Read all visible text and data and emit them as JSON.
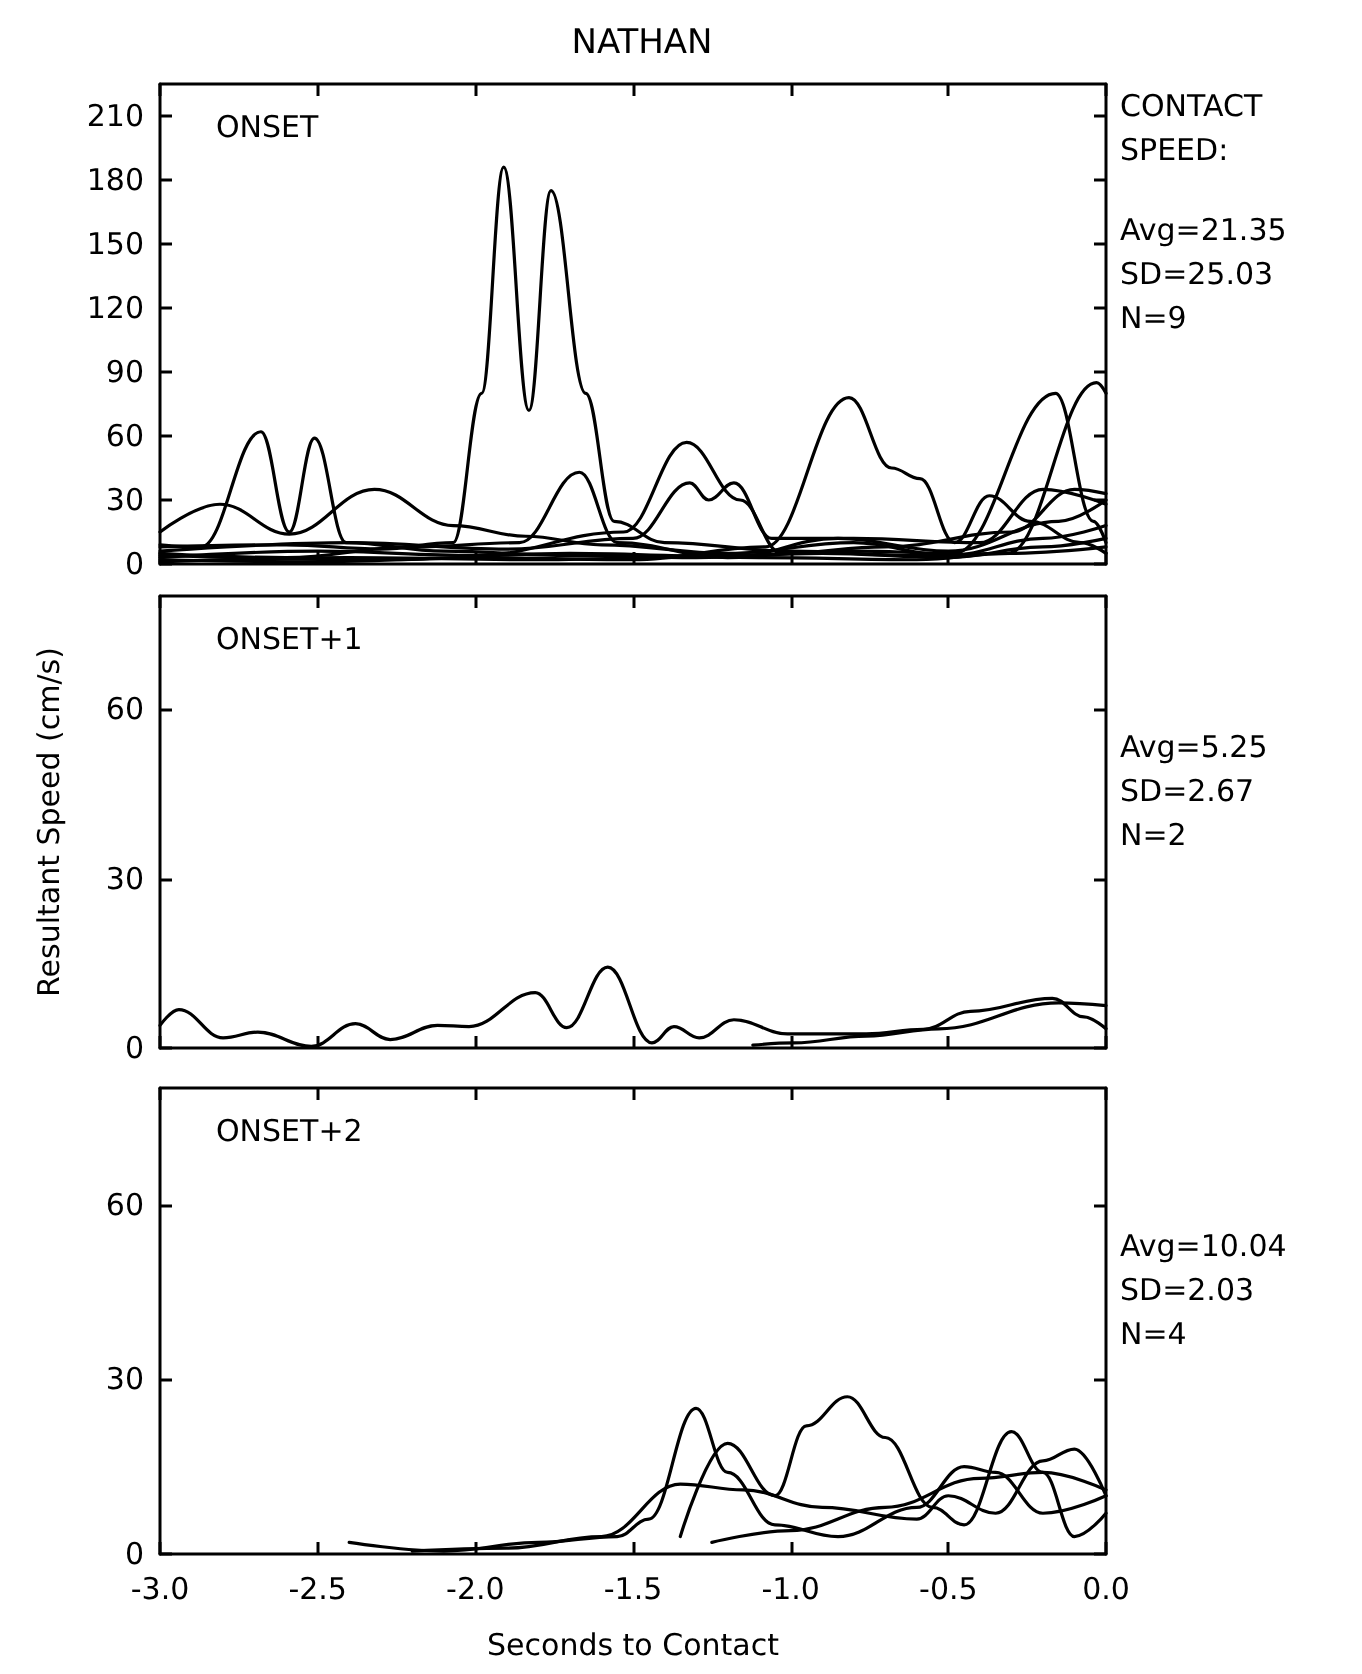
{
  "chart_data": [
    {
      "type": "line",
      "title": "NATHAN",
      "subtitle": "ONSET",
      "annotations": [
        "CONTACT SPEED:",
        "Avg=21.35",
        "SD=25.03",
        "N=9"
      ],
      "xlim": [
        -3,
        0
      ],
      "ylim": [
        0,
        225
      ],
      "yticks": [
        0,
        30,
        60,
        90,
        120,
        150,
        180,
        210
      ],
      "xticks": [
        -3,
        -2.5,
        -2,
        -1.5,
        -1,
        -0.5,
        0
      ],
      "tick_labels": "y",
      "marker": "none",
      "line_style": "solid",
      "series": [
        {
          "color": "#000000",
          "x": [
            -3,
            -2.6,
            -2.3,
            -2.07,
            -1.98,
            -1.91,
            -1.83,
            -1.76,
            -1.65,
            -1.56,
            -1.4,
            -1.0,
            -0.6,
            -0.3,
            0
          ],
          "values": [
            8,
            9,
            7,
            10,
            80,
            186,
            72,
            175,
            80,
            20,
            10,
            6,
            4,
            5,
            8
          ]
        },
        {
          "color": "#000000",
          "x": [
            -3,
            -2.87,
            -2.68,
            -2.59,
            -2.51,
            -2.41,
            -2.1,
            -1.7,
            -1.3,
            -0.9,
            -0.5,
            -0.2,
            0
          ],
          "values": [
            9,
            8,
            62,
            15,
            59,
            10,
            6,
            4,
            3,
            5,
            3,
            8,
            12
          ]
        },
        {
          "color": "#000000",
          "x": [
            -3,
            -2.81,
            -2.59,
            -2.32,
            -2.07,
            -1.84,
            -1.6,
            -1.2,
            -0.8,
            -0.5,
            -0.2,
            0
          ],
          "values": [
            15,
            28,
            14,
            35,
            18,
            13,
            9,
            5,
            10,
            4,
            12,
            18
          ]
        },
        {
          "color": "#000000",
          "x": [
            -3,
            -2.6,
            -2.2,
            -1.86,
            -1.67,
            -1.55,
            -1.2,
            -0.85,
            -0.5,
            -0.15,
            0
          ],
          "values": [
            5,
            3,
            8,
            10,
            43,
            10,
            3,
            12,
            6,
            20,
            30
          ]
        },
        {
          "color": "#000000",
          "x": [
            -3,
            -2.5,
            -2.0,
            -1.53,
            -1.33,
            -1.16,
            -1.03,
            -0.7,
            -0.3,
            -0.1,
            0
          ],
          "values": [
            3,
            6,
            4,
            15,
            57,
            30,
            5,
            8,
            15,
            35,
            33
          ]
        },
        {
          "color": "#000000",
          "x": [
            -3,
            -2.4,
            -1.9,
            -1.5,
            -1.32,
            -1.26,
            -1.18,
            -1.06,
            -0.8,
            -0.4,
            -0.2,
            0
          ],
          "values": [
            6,
            10,
            7,
            12,
            38,
            30,
            38,
            12,
            12,
            10,
            35,
            28
          ]
        },
        {
          "color": "#000000",
          "x": [
            -3,
            -2.5,
            -2.0,
            -1.5,
            -1.08,
            -0.815,
            -0.68,
            -0.59,
            -0.48,
            -0.37,
            -0.24,
            -0.08,
            0
          ],
          "values": [
            2,
            1,
            3,
            2,
            8,
            78,
            45,
            40,
            10,
            32,
            20,
            10,
            5
          ]
        },
        {
          "color": "#000000",
          "x": [
            -3,
            -2.4,
            -1.8,
            -1.2,
            -0.8,
            -0.48,
            -0.16,
            -0.04,
            0
          ],
          "values": [
            1,
            3,
            2,
            4,
            6,
            5,
            80,
            20,
            10
          ]
        },
        {
          "color": "#000000",
          "x": [
            -3,
            -2.3,
            -1.7,
            -1.1,
            -0.6,
            -0.31,
            -0.03,
            0
          ],
          "values": [
            4,
            2,
            5,
            3,
            2,
            5,
            85,
            80
          ]
        }
      ]
    },
    {
      "type": "line",
      "subtitle": "ONSET+1",
      "ylabel": "Resultant Speed (cm/s)",
      "annotations": [
        "Avg=5.25",
        "SD=2.67",
        "N=2"
      ],
      "xlim": [
        -3,
        0
      ],
      "ylim": [
        0,
        80
      ],
      "yticks": [
        0,
        30,
        60
      ],
      "xticks": [
        -3,
        -2.5,
        -2,
        -1.5,
        -1,
        -0.5,
        0
      ],
      "tick_labels": "y",
      "marker": "none",
      "line_style": "solid",
      "series": [
        {
          "color": "#000000",
          "x": [
            -3,
            -2.94,
            -2.8,
            -2.69,
            -2.52,
            -2.38,
            -2.27,
            -2.12,
            -2.02,
            -1.81,
            -1.71,
            -1.58,
            -1.44,
            -1.37,
            -1.29,
            -1.18,
            -1.01,
            -0.76,
            -0.58,
            -0.43,
            -0.17,
            -0.07,
            0
          ],
          "values": [
            4,
            6.8,
            1.8,
            2.8,
            0.3,
            4.3,
            1.5,
            4,
            3.8,
            9.8,
            3.6,
            14.3,
            0.9,
            3.8,
            1.8,
            5,
            2.5,
            2.5,
            3.3,
            6.5,
            8.8,
            5.5,
            3.4
          ]
        },
        {
          "color": "#000000",
          "x": [
            -1.12,
            -0.99,
            -0.76,
            -0.53,
            -0.15,
            0
          ],
          "values": [
            0.5,
            0.9,
            2.1,
            3.4,
            8,
            7.5
          ]
        }
      ]
    },
    {
      "type": "line",
      "subtitle": "ONSET+2",
      "xlabel": "Seconds to Contact",
      "annotations": [
        "Avg=10.04",
        "SD=2.03",
        "N=4"
      ],
      "xlim": [
        -3,
        0
      ],
      "ylim": [
        0,
        80
      ],
      "yticks": [
        0,
        30,
        60
      ],
      "xticks": [
        {
          "value": -3,
          "label": "-3.0"
        },
        {
          "value": -2.5,
          "label": "-2.5"
        },
        {
          "value": -2,
          "label": "-2.0"
        },
        {
          "value": -1.5,
          "label": "-1.5"
        },
        {
          "value": -1,
          "label": "-1.0"
        },
        {
          "value": -0.5,
          "label": "-0.5"
        },
        {
          "value": 0,
          "label": "0.0"
        }
      ],
      "marker": "none",
      "line_style": "solid",
      "series": [
        {
          "color": "#000000",
          "x": [
            -2.4,
            -2.1,
            -1.8,
            -1.55,
            -1.45,
            -1.3,
            -1.2,
            -1.05,
            -0.85,
            -0.6,
            -0.45,
            -0.35,
            -0.2,
            0
          ],
          "values": [
            2,
            0.5,
            2,
            3,
            6,
            25,
            14,
            5,
            3,
            8,
            15,
            14,
            7,
            10
          ]
        },
        {
          "color": "#000000",
          "x": [
            -1.35,
            -1.2,
            -1.05,
            -0.95,
            -0.82,
            -0.7,
            -0.55,
            -0.45,
            -0.3,
            -0.2,
            -0.1,
            0
          ],
          "values": [
            3,
            19,
            10,
            22,
            27,
            20,
            8,
            5,
            21,
            14,
            3,
            7
          ]
        },
        {
          "color": "#000000",
          "x": [
            -2.2,
            -1.9,
            -1.6,
            -1.35,
            -1.15,
            -0.9,
            -0.6,
            -0.5,
            -0.35,
            -0.2,
            -0.1,
            0
          ],
          "values": [
            0.5,
            1,
            3,
            12,
            11,
            8,
            6,
            10,
            7,
            16,
            18,
            10
          ]
        },
        {
          "color": "#000000",
          "x": [
            -1.25,
            -1.0,
            -0.7,
            -0.4,
            -0.2,
            0
          ],
          "values": [
            2,
            4,
            8,
            13,
            14,
            11
          ]
        }
      ]
    }
  ]
}
